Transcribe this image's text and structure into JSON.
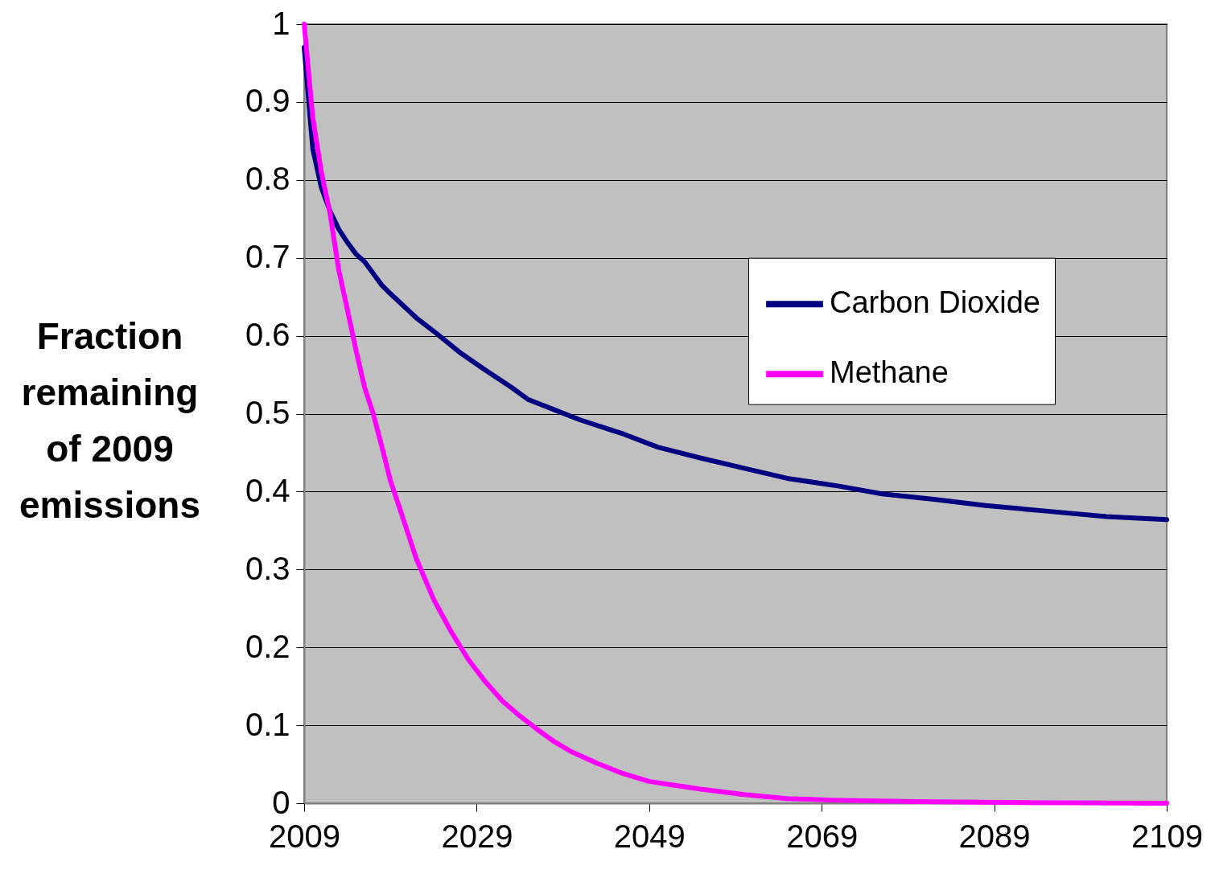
{
  "chart_data": {
    "type": "line",
    "ylabel": "Fraction remaining of 2009 emissions",
    "xlim": [
      2009,
      2109
    ],
    "xticks": [
      2009,
      2029,
      2049,
      2069,
      2089,
      2109
    ],
    "ylim": [
      0,
      1
    ],
    "yticks": [
      0,
      0.1,
      0.2,
      0.3,
      0.4,
      0.5,
      0.6,
      0.7,
      0.8,
      0.9,
      1
    ],
    "grid": "y",
    "legend": "right",
    "line_style": "solid",
    "series": [
      {
        "name": "Carbon Dioxide",
        "color": "#000080",
        "x": [
          2009,
          2010,
          2011,
          2012,
          2013,
          2014,
          2015,
          2016,
          2017,
          2018,
          2019,
          2022,
          2024,
          2027,
          2030,
          2033,
          2035,
          2038,
          2041,
          2046,
          2050,
          2055,
          2060,
          2065,
          2071,
          2076,
          2082,
          2088,
          2095,
          2102,
          2109
        ],
        "values": [
          0.97,
          0.84,
          0.79,
          0.76,
          0.737,
          0.72,
          0.705,
          0.695,
          0.68,
          0.665,
          0.654,
          0.623,
          0.606,
          0.579,
          0.556,
          0.534,
          0.518,
          0.505,
          0.492,
          0.474,
          0.457,
          0.443,
          0.43,
          0.417,
          0.407,
          0.397,
          0.39,
          0.382,
          0.375,
          0.368,
          0.364
        ]
      },
      {
        "name": "Methane",
        "color": "#ff00ff",
        "x": [
          2009,
          2010,
          2011,
          2012,
          2013,
          2014,
          2015,
          2016,
          2017,
          2018,
          2019,
          2020,
          2022,
          2024,
          2026,
          2028,
          2030,
          2032,
          2034,
          2036,
          2038,
          2040,
          2043,
          2046,
          2049,
          2052,
          2055,
          2060,
          2065,
          2070,
          2080,
          2090,
          2109
        ],
        "values": [
          1.0,
          0.88,
          0.81,
          0.757,
          0.685,
          0.634,
          0.582,
          0.534,
          0.5,
          0.458,
          0.414,
          0.381,
          0.314,
          0.262,
          0.221,
          0.185,
          0.156,
          0.131,
          0.112,
          0.095,
          0.079,
          0.066,
          0.051,
          0.038,
          0.028,
          0.023,
          0.018,
          0.011,
          0.006,
          0.004,
          0.002,
          0.001,
          0.0
        ]
      }
    ]
  }
}
